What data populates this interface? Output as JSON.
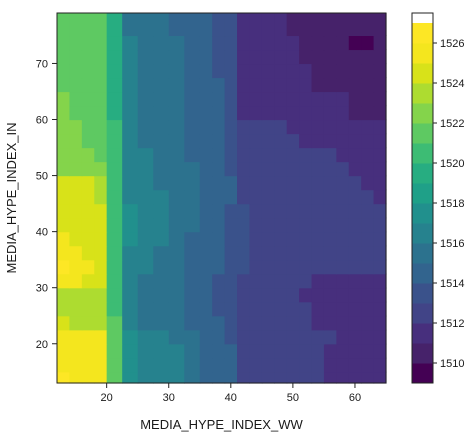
{
  "chart_data": {
    "type": "heatmap",
    "xlabel": "MEDIA_HYPE_INDEX_WW",
    "ylabel": "MEDIA_HYPE_INDEX_IN",
    "xlim": [
      12,
      65
    ],
    "ylim": [
      13,
      79
    ],
    "xticks": [
      20,
      30,
      40,
      50,
      60
    ],
    "yticks": [
      20,
      30,
      40,
      50,
      60,
      70
    ],
    "x_edges": [
      12,
      14,
      16,
      18,
      20,
      22.5,
      25,
      27.5,
      30,
      32.5,
      35,
      37,
      39,
      41,
      43,
      45,
      47,
      49,
      51,
      53,
      55,
      57,
      59,
      61,
      63,
      65
    ],
    "y_edges": [
      13,
      15,
      17.5,
      20,
      22.5,
      25,
      27.5,
      30,
      32.5,
      35,
      37.5,
      40,
      42.5,
      45,
      47.5,
      50,
      52.5,
      55,
      57.5,
      60,
      62.5,
      65,
      67.5,
      70,
      72.5,
      75,
      79
    ],
    "values": [
      [
        1526,
        1525.8,
        1525.8,
        1525.6,
        1521.5,
        1517.4,
        1516.4,
        1516.2,
        1516,
        1515.2,
        1514.8,
        1514.4,
        1514,
        1512.6,
        1512.5,
        1512.4,
        1512.4,
        1512.2,
        1512,
        1512,
        1511.9,
        1511.8,
        1511.7,
        1511.7,
        1511.6
      ],
      [
        1525.8,
        1525.8,
        1525.6,
        1525.4,
        1521.5,
        1517.4,
        1516.4,
        1516.2,
        1516,
        1515.2,
        1514.8,
        1514.4,
        1514,
        1512.6,
        1512.5,
        1512.4,
        1512.4,
        1512.2,
        1512,
        1512,
        1511.9,
        1511.8,
        1511.7,
        1511.7,
        1511.6
      ],
      [
        1525.8,
        1525.6,
        1525.6,
        1525.4,
        1521.5,
        1517.4,
        1516.4,
        1516.2,
        1516,
        1515.2,
        1514.8,
        1514.4,
        1514,
        1512.6,
        1512.5,
        1512.4,
        1512.4,
        1512.2,
        1512,
        1512,
        1511.9,
        1511.8,
        1511.7,
        1511.7,
        1511.6
      ],
      [
        1525.7,
        1525.6,
        1525.5,
        1525.3,
        1521.3,
        1517.3,
        1516.3,
        1516.1,
        1515.9,
        1515.1,
        1514.7,
        1514.3,
        1513.9,
        1512.6,
        1512.5,
        1512.4,
        1512.4,
        1512.2,
        1512.1,
        1512,
        1512,
        1511.8,
        1511.8,
        1511.7,
        1511.6
      ],
      [
        1524.2,
        1523.8,
        1523.6,
        1523.4,
        1521,
        1516.9,
        1515.9,
        1515.7,
        1515.5,
        1514.7,
        1514.3,
        1514,
        1513.6,
        1512.5,
        1512.4,
        1512.3,
        1512.3,
        1512.1,
        1512,
        1511.9,
        1511.9,
        1511.8,
        1511.7,
        1511.6,
        1511.5
      ],
      [
        1523.9,
        1523.6,
        1523.4,
        1523.2,
        1520.8,
        1516.7,
        1515.7,
        1515.5,
        1515.3,
        1514.5,
        1514.1,
        1513.8,
        1513.4,
        1512.5,
        1512.4,
        1512.3,
        1512.3,
        1512.1,
        1512,
        1511.9,
        1511.9,
        1511.8,
        1511.7,
        1511.6,
        1511.5
      ],
      [
        1523.8,
        1523.5,
        1523.3,
        1523.1,
        1520.6,
        1516.5,
        1515.6,
        1515.4,
        1515.2,
        1514.4,
        1514,
        1513.7,
        1513.3,
        1512.4,
        1512.3,
        1512.2,
        1512.2,
        1512,
        1511.9,
        1511.8,
        1511.8,
        1511.7,
        1511.6,
        1511.5,
        1511.4
      ],
      [
        1525.9,
        1525.7,
        1524.8,
        1524.7,
        1520.5,
        1516.6,
        1515.8,
        1515.6,
        1515.4,
        1514.6,
        1514.2,
        1513.9,
        1513.5,
        1512.5,
        1512.4,
        1512.3,
        1512.3,
        1512.1,
        1512,
        1511.9,
        1511.9,
        1511.8,
        1511.7,
        1511.6,
        1511.5
      ],
      [
        1526,
        1525.8,
        1525.6,
        1524.6,
        1520.4,
        1516.9,
        1516,
        1515.8,
        1515.6,
        1514.8,
        1514.4,
        1514.1,
        1513.7,
        1513,
        1512.9,
        1512.8,
        1512.8,
        1512.6,
        1512.5,
        1512.4,
        1512.4,
        1512.3,
        1512.2,
        1512.1,
        1512
      ],
      [
        1525.8,
        1525.6,
        1524.6,
        1524.4,
        1520.3,
        1516.8,
        1516.2,
        1515.9,
        1515.7,
        1514.9,
        1514.5,
        1514.2,
        1513.8,
        1513,
        1512.9,
        1512.8,
        1512.8,
        1512.6,
        1512.5,
        1512.4,
        1512.4,
        1512.3,
        1512.2,
        1512.1,
        1512
      ],
      [
        1525.4,
        1524.6,
        1524.4,
        1524.2,
        1520.3,
        1517,
        1516.4,
        1516,
        1515.7,
        1514.9,
        1514.5,
        1514.2,
        1513.8,
        1513,
        1512.9,
        1512.8,
        1512.8,
        1512.6,
        1512.5,
        1512.4,
        1512.4,
        1512.3,
        1512.2,
        1512.1,
        1512
      ],
      [
        1524.6,
        1524.4,
        1524.3,
        1524.1,
        1520.3,
        1517.1,
        1516.6,
        1516.1,
        1515.8,
        1515,
        1514.6,
        1514.3,
        1513.9,
        1513,
        1512.9,
        1512.8,
        1512.8,
        1512.6,
        1512.5,
        1512.4,
        1512.4,
        1512.3,
        1512.2,
        1512.1,
        1512
      ],
      [
        1524.4,
        1524.2,
        1524.1,
        1524,
        1520.3,
        1517,
        1516.5,
        1516.1,
        1515.8,
        1515,
        1514.6,
        1514.3,
        1513.9,
        1513,
        1512.9,
        1512.8,
        1512.8,
        1512.6,
        1512.5,
        1512.4,
        1512.4,
        1512.3,
        1512.2,
        1512.1,
        1512
      ],
      [
        1524.3,
        1524.1,
        1524,
        1523.9,
        1520.3,
        1516.9,
        1516.3,
        1516,
        1515.8,
        1515.1,
        1514.8,
        1514.5,
        1514,
        1512.9,
        1512.8,
        1512.7,
        1512.7,
        1512.5,
        1512.4,
        1512.3,
        1512.3,
        1512.2,
        1512.1,
        1512,
        1511.9
      ],
      [
        1524.5,
        1524.4,
        1524.3,
        1523.2,
        1520.3,
        1516.8,
        1516.2,
        1515.9,
        1515.7,
        1515.2,
        1514.9,
        1514.6,
        1514.1,
        1512.8,
        1512.7,
        1512.6,
        1512.6,
        1512.4,
        1512.3,
        1512.2,
        1512.2,
        1512.1,
        1512,
        1511.9,
        1511.8
      ],
      [
        1522.3,
        1522.2,
        1522.1,
        1522,
        1520.2,
        1516.7,
        1516.1,
        1515.8,
        1515.6,
        1515,
        1514.7,
        1514.4,
        1513.9,
        1512.7,
        1512.6,
        1512.5,
        1512.5,
        1512.3,
        1512.2,
        1512.1,
        1512.1,
        1512,
        1511.9,
        1511.8,
        1511.7
      ],
      [
        1522.2,
        1522.1,
        1522,
        1521.9,
        1520.1,
        1516.6,
        1516,
        1515.7,
        1515.5,
        1514.9,
        1514.6,
        1514.3,
        1513.8,
        1512.6,
        1512.5,
        1512.4,
        1512.4,
        1512.2,
        1512.1,
        1512,
        1512,
        1511.9,
        1511.8,
        1511.7,
        1511.6
      ],
      [
        1522.1,
        1522,
        1521.9,
        1521.8,
        1520,
        1516.5,
        1515.9,
        1515.6,
        1515.4,
        1514.8,
        1514.5,
        1514.2,
        1513.7,
        1512.4,
        1512.3,
        1512.2,
        1512.2,
        1512,
        1511.9,
        1511.8,
        1511.8,
        1511.7,
        1511.6,
        1511.5,
        1511.4
      ],
      [
        1522.1,
        1522,
        1521.9,
        1521.8,
        1520,
        1516.4,
        1515.8,
        1515.6,
        1515.4,
        1514.8,
        1514.5,
        1514.2,
        1513.7,
        1512.2,
        1512.1,
        1512,
        1512,
        1511.8,
        1511.7,
        1511.6,
        1511.6,
        1511.5,
        1511.4,
        1511.3,
        1511.2
      ],
      [
        1522,
        1521.9,
        1521.8,
        1521.7,
        1519.9,
        1516.3,
        1515.7,
        1515.5,
        1515.3,
        1514.7,
        1514.4,
        1514.1,
        1513.6,
        1511.4,
        1511.3,
        1511.2,
        1511.2,
        1511.1,
        1511.1,
        1511,
        1511,
        1511,
        1510.9,
        1510.9,
        1510.8
      ],
      [
        1522,
        1521.9,
        1521.8,
        1521.7,
        1519.9,
        1516.3,
        1515.7,
        1515.5,
        1515.3,
        1514.7,
        1514.4,
        1514.1,
        1513.6,
        1511.4,
        1511.3,
        1511.2,
        1511.2,
        1511.1,
        1511.1,
        1511,
        1511,
        1511,
        1510.9,
        1510.9,
        1510.8
      ],
      [
        1521.9,
        1521.8,
        1521.7,
        1521.6,
        1519.8,
        1516.2,
        1515.6,
        1515.4,
        1515.2,
        1514.6,
        1514.3,
        1514,
        1513.5,
        1511.3,
        1511.2,
        1511.1,
        1511.1,
        1511,
        1511,
        1510.9,
        1510.9,
        1510.9,
        1510.8,
        1510.8,
        1510.7
      ],
      [
        1521.8,
        1521.7,
        1521.6,
        1521.5,
        1519.7,
        1516.1,
        1515.5,
        1515.3,
        1515.1,
        1514.5,
        1514.2,
        1513.9,
        1513.4,
        1511.3,
        1511.2,
        1511.1,
        1511.1,
        1511,
        1511,
        1510.9,
        1510.9,
        1510.9,
        1510.8,
        1510.8,
        1510.7
      ],
      [
        1521.7,
        1521.6,
        1521.5,
        1521.4,
        1519.6,
        1516,
        1515.4,
        1515.2,
        1515,
        1514.4,
        1514.1,
        1513.8,
        1513.3,
        1511.2,
        1511.1,
        1511,
        1511,
        1511,
        1510.9,
        1510.9,
        1510.9,
        1510.8,
        1510.8,
        1510.7,
        1510.7
      ],
      [
        1521.6,
        1521.5,
        1521.4,
        1521.3,
        1519.5,
        1516,
        1515.4,
        1515.2,
        1515,
        1514.4,
        1514.1,
        1513.8,
        1513.3,
        1511.2,
        1511.1,
        1511,
        1511,
        1511,
        1510.9,
        1510.9,
        1510.9,
        1510.8,
        1509.6,
        1509.6,
        1510.7
      ],
      [
        1521.5,
        1521.4,
        1521.3,
        1521.2,
        1519.4,
        1515.9,
        1515.3,
        1515.1,
        1514.9,
        1514.3,
        1514,
        1513.7,
        1513.2,
        1511.2,
        1511.1,
        1511,
        1511,
        1510.9,
        1510.9,
        1510.9,
        1510.8,
        1510.8,
        1510.8,
        1510.7,
        1510.7
      ]
    ],
    "colorbar": {
      "min": 1509,
      "max": 1527.5,
      "ticks": [
        1510,
        1512,
        1514,
        1516,
        1518,
        1520,
        1522,
        1524,
        1526
      ],
      "step": 1,
      "colors": [
        "#440154",
        "#46226a",
        "#472f7d",
        "#414487",
        "#3a528b",
        "#32648e",
        "#2c728e",
        "#26828e",
        "#21908d",
        "#1fa088",
        "#27ad81",
        "#3dbc74",
        "#5ec962",
        "#84d44b",
        "#addc30",
        "#d8e219",
        "#f4e61e",
        "#fde725"
      ]
    },
    "grid": false,
    "legend": "colorbar-right"
  }
}
